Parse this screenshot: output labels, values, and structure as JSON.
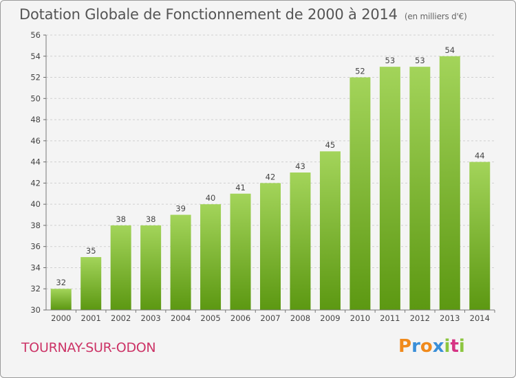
{
  "chart_data": {
    "type": "bar",
    "title": "Dotation Globale de Fonctionnement de 2000 à 2014",
    "subtitle": "(en milliers d'€)",
    "categories": [
      "2000",
      "2001",
      "2002",
      "2003",
      "2004",
      "2005",
      "2006",
      "2007",
      "2008",
      "2009",
      "2010",
      "2011",
      "2012",
      "2013",
      "2014"
    ],
    "values": [
      32,
      35,
      38,
      38,
      39,
      40,
      41,
      42,
      43,
      45,
      52,
      53,
      53,
      54,
      44
    ],
    "ylim": [
      30,
      56
    ],
    "yticks": [
      30,
      32,
      34,
      36,
      38,
      40,
      42,
      44,
      46,
      48,
      50,
      52,
      54,
      56
    ],
    "xlabel": "",
    "ylabel": "",
    "grid": true,
    "bar_color_top": "#a3d45a",
    "bar_color_bottom": "#5c9812"
  },
  "footer": {
    "place_name": "TOURNAY-SUR-ODON",
    "logo_text": "Proxiti",
    "logo_colors": [
      "#f08a1c",
      "#3a8fd8",
      "#f08a1c",
      "#3a8fd8",
      "#8cc63f",
      "#d63384",
      "#8cc63f"
    ]
  }
}
